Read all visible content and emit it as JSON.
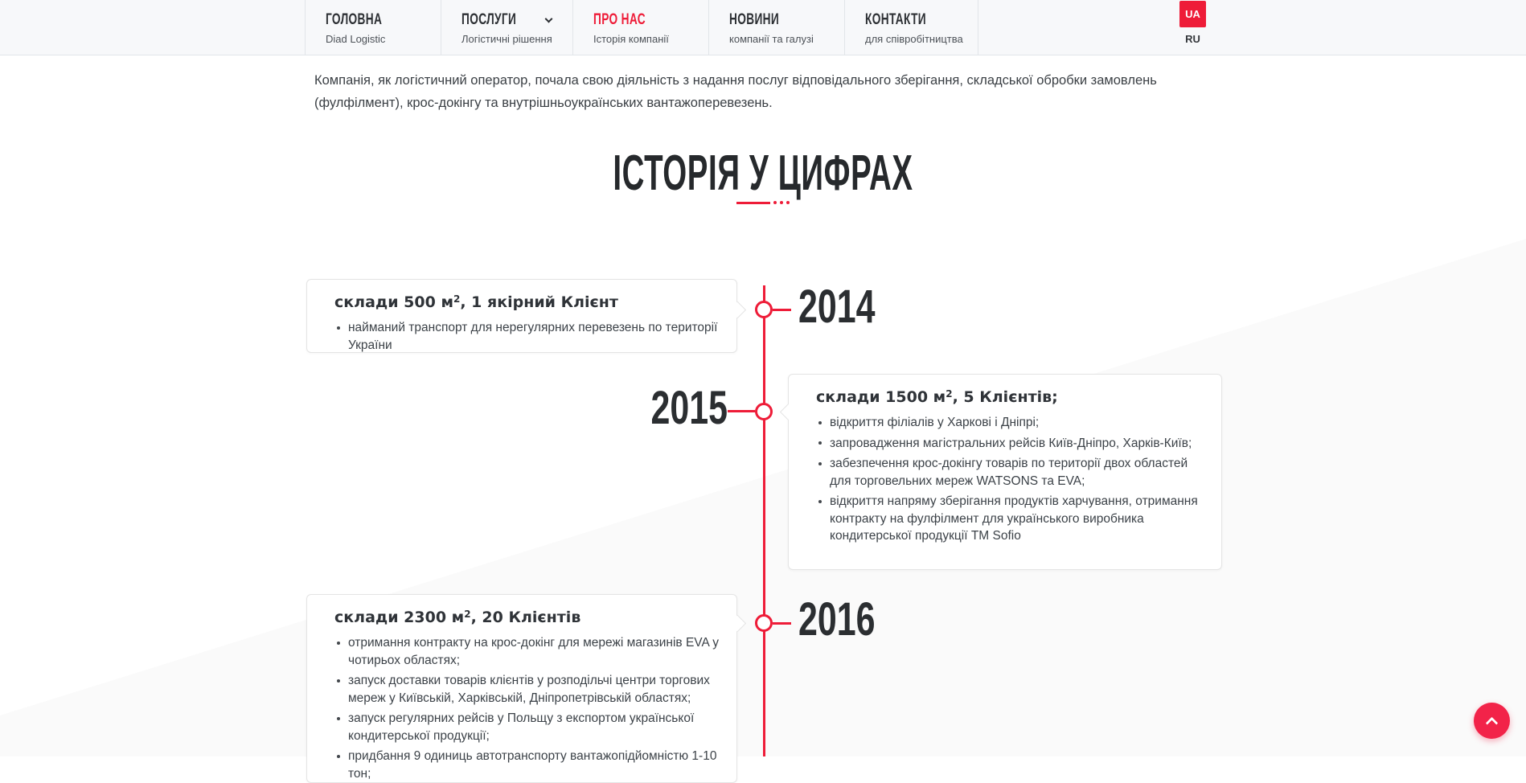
{
  "colors": {
    "accent": "#ee1c38",
    "scroll_button": "#f22349",
    "nav_background": "#f7f8fa",
    "diagonal_background": "#fafafa",
    "dark_text": "#2b2e31"
  },
  "header": {
    "nav": [
      {
        "label": "ГОЛОВНА",
        "sublabel": "Diad Logistic",
        "active": false,
        "has_dropdown": false
      },
      {
        "label": "ПОСЛУГИ",
        "sublabel": "Логістичні рішення",
        "active": false,
        "has_dropdown": true
      },
      {
        "label": "ПРО НАС",
        "sublabel": "Історія компанії",
        "active": true,
        "has_dropdown": false
      },
      {
        "label": "НОВИНИ",
        "sublabel": "компанії та галузі",
        "active": false,
        "has_dropdown": false
      },
      {
        "label": "КОНТАКТИ",
        "sublabel": "для співробітництва",
        "active": false,
        "has_dropdown": false
      }
    ],
    "lang": {
      "current": "UA",
      "other": "RU"
    }
  },
  "intro": {
    "text": "Компанія, як логістичний оператор, почала свою діяльність з надання послуг відповідального зберігання, складської обробки замовлень (фулфілмент), крос-докінгу та внутрішньоукраїнських вантажоперевезень."
  },
  "section": {
    "title": "ІСТОРІЯ У ЦИФРАХ"
  },
  "timeline": [
    {
      "year": "2014",
      "card": {
        "title_pre": "склади 500 м",
        "title_sup": "2",
        "title_post": ", 1 якірний Клієнт",
        "bullets": [
          "найманий транспорт для нерегулярних перевезень по території України"
        ]
      }
    },
    {
      "year": "2015",
      "card": {
        "title_pre": "склади 1500 м",
        "title_sup": "2",
        "title_post": ", 5 Клієнтів;",
        "bullets": [
          "відкриття філіалів у Харкові і Дніпрі;",
          "запровадження магістральних рейсів Київ-Дніпро, Харків-Київ;",
          "забезпечення крос-докінгу товарів по території двох областей для торговельних мереж WATSONS та EVA;",
          "відкриття напряму зберігання продуктів харчування, отримання контракту на фулфілмент для українського виробника кондитерської продукції ТМ Sofio"
        ]
      }
    },
    {
      "year": "2016",
      "card": {
        "title_pre": "склади 2300 м",
        "title_sup": "2",
        "title_post": ", 20 Клієнтів",
        "bullets": [
          "отримання контракту на крос-докінг для мережі магазинів EVA у чотирьох областях;",
          "запуск доставки товарів клієнтів у розподільчі центри торгових мереж у Київській, Харківській, Дніпропетрівській областях;",
          "запуск регулярних рейсів у Польщу з експортом української кондитерської продукції;",
          "придбання 9 одиниць автотранспорту вантажопідйомністю 1-10 тон;"
        ]
      }
    }
  ],
  "scroll_top": {
    "icon": "chevron-up-icon"
  }
}
